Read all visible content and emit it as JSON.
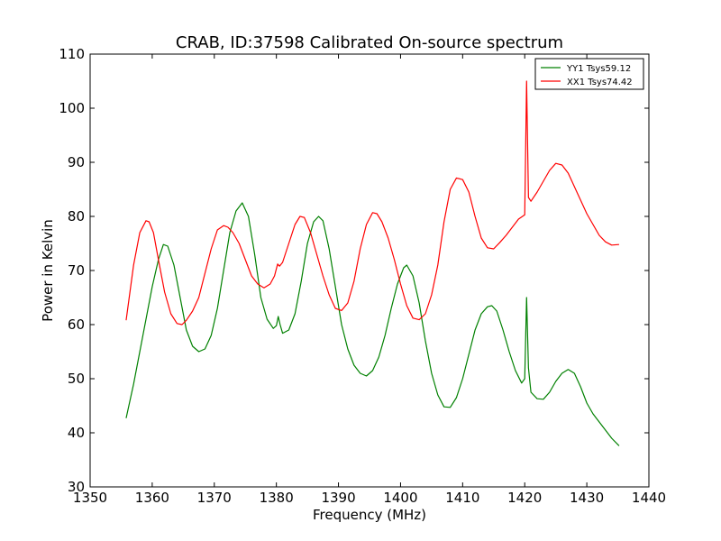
{
  "chart_data": {
    "type": "line",
    "title": "CRAB, ID:37598 Calibrated On-source spectrum",
    "xlabel": "Frequency (MHz)",
    "ylabel": "Power in Kelvin",
    "xlim": [
      1350,
      1440
    ],
    "ylim": [
      30,
      110
    ],
    "xticks": [
      1350,
      1360,
      1370,
      1380,
      1390,
      1400,
      1410,
      1420,
      1430,
      1440
    ],
    "yticks": [
      30,
      40,
      50,
      60,
      70,
      80,
      90,
      100,
      110
    ],
    "grid": false,
    "legend_position": "top-right",
    "series": [
      {
        "name": "YY1 Tsys59.12",
        "color": "#008000",
        "x": [
          1355.8,
          1357,
          1358.5,
          1360,
          1361,
          1361.8,
          1362.5,
          1363.5,
          1364.5,
          1365.5,
          1366.5,
          1367.5,
          1368.5,
          1369.5,
          1370.5,
          1371.5,
          1372.5,
          1373.5,
          1374.5,
          1375.5,
          1376.5,
          1377.5,
          1378.5,
          1379.5,
          1380.0,
          1380.3,
          1380.6,
          1381.0,
          1382.0,
          1383.0,
          1384.0,
          1385.0,
          1386.0,
          1386.8,
          1387.5,
          1388.5,
          1389.5,
          1390.5,
          1391.5,
          1392.5,
          1393.5,
          1394.5,
          1395.5,
          1396.5,
          1397.5,
          1398.5,
          1399.5,
          1400.5,
          1401.0,
          1402.0,
          1403.0,
          1404.0,
          1405.0,
          1406.0,
          1407.0,
          1408.0,
          1409.0,
          1410.0,
          1411.0,
          1412.0,
          1413.0,
          1414.0,
          1414.7,
          1415.5,
          1416.5,
          1417.5,
          1418.5,
          1419.5,
          1420.0,
          1420.3,
          1420.6,
          1421.0,
          1422.0,
          1423.0,
          1424.0,
          1425.0,
          1426.0,
          1427.0,
          1428.0,
          1429.0,
          1430.0,
          1431.0,
          1432.0,
          1433.0,
          1434.0,
          1435.2
        ],
        "y": [
          42.7,
          49,
          58,
          67,
          72,
          74.8,
          74.5,
          71,
          65,
          59,
          56,
          55,
          55.5,
          58,
          63,
          70,
          77,
          81,
          82.5,
          80,
          73,
          65,
          61,
          59.3,
          59.8,
          61.5,
          60,
          58.4,
          59,
          62,
          68,
          75,
          79,
          80,
          79.2,
          74,
          67,
          60,
          55.5,
          52.5,
          51,
          50.5,
          51.5,
          54,
          58,
          63,
          67.5,
          70.5,
          71,
          69,
          64,
          57,
          51,
          47,
          44.8,
          44.7,
          46.5,
          50,
          54.5,
          59,
          62,
          63.3,
          63.5,
          62.5,
          59,
          55,
          51.5,
          49.2,
          50,
          65,
          52,
          47.5,
          46.3,
          46.2,
          47.5,
          49.5,
          51,
          51.7,
          51,
          48.5,
          45.5,
          43.5,
          42,
          40.5,
          39,
          37.6
        ]
      },
      {
        "name": "XX1 Tsys74.42",
        "color": "#ff0000",
        "x": [
          1355.8,
          1357,
          1358,
          1359,
          1359.5,
          1360.2,
          1361,
          1362,
          1363,
          1364,
          1364.8,
          1365.5,
          1366.5,
          1367.5,
          1368.5,
          1369.5,
          1370.5,
          1371.5,
          1372.2,
          1373,
          1374,
          1375,
          1376,
          1377,
          1378,
          1379,
          1379.7,
          1380.2,
          1380.5,
          1381,
          1382,
          1383,
          1383.8,
          1384.5,
          1385.5,
          1386.5,
          1387.5,
          1388.5,
          1389.5,
          1390.5,
          1391.5,
          1392.5,
          1393.5,
          1394.5,
          1395.5,
          1396.2,
          1397,
          1398,
          1399,
          1400,
          1401,
          1402,
          1403,
          1404,
          1405,
          1406,
          1407,
          1408,
          1409,
          1410,
          1411,
          1412,
          1413,
          1414,
          1415,
          1416,
          1417,
          1418,
          1419,
          1420.0,
          1420.3,
          1420.6,
          1421.0,
          1422,
          1423,
          1424,
          1425,
          1426,
          1427,
          1428,
          1429,
          1430,
          1431,
          1432,
          1433,
          1434,
          1435.2
        ],
        "y": [
          60.8,
          71,
          77,
          79.2,
          79,
          77,
          72,
          66,
          62,
          60.2,
          60,
          60.8,
          62.5,
          65,
          69.5,
          74,
          77.5,
          78.3,
          78,
          77,
          75,
          72,
          69,
          67.5,
          66.8,
          67.5,
          69,
          71.2,
          70.8,
          71.5,
          75,
          78.5,
          80,
          79.8,
          77,
          73,
          69,
          65.5,
          63,
          62.6,
          64,
          68,
          74,
          78.5,
          80.7,
          80.5,
          79,
          76,
          72,
          67.5,
          63.5,
          61.2,
          60.9,
          62,
          65.5,
          71,
          79,
          85,
          87.1,
          86.8,
          84.5,
          80,
          76,
          74.2,
          74,
          75.2,
          76.5,
          78,
          79.5,
          80.3,
          105,
          83.5,
          82.8,
          84.5,
          86.5,
          88.5,
          89.8,
          89.5,
          88,
          85.5,
          83,
          80.5,
          78.5,
          76.5,
          75.3,
          74.7,
          74.8
        ]
      }
    ]
  }
}
